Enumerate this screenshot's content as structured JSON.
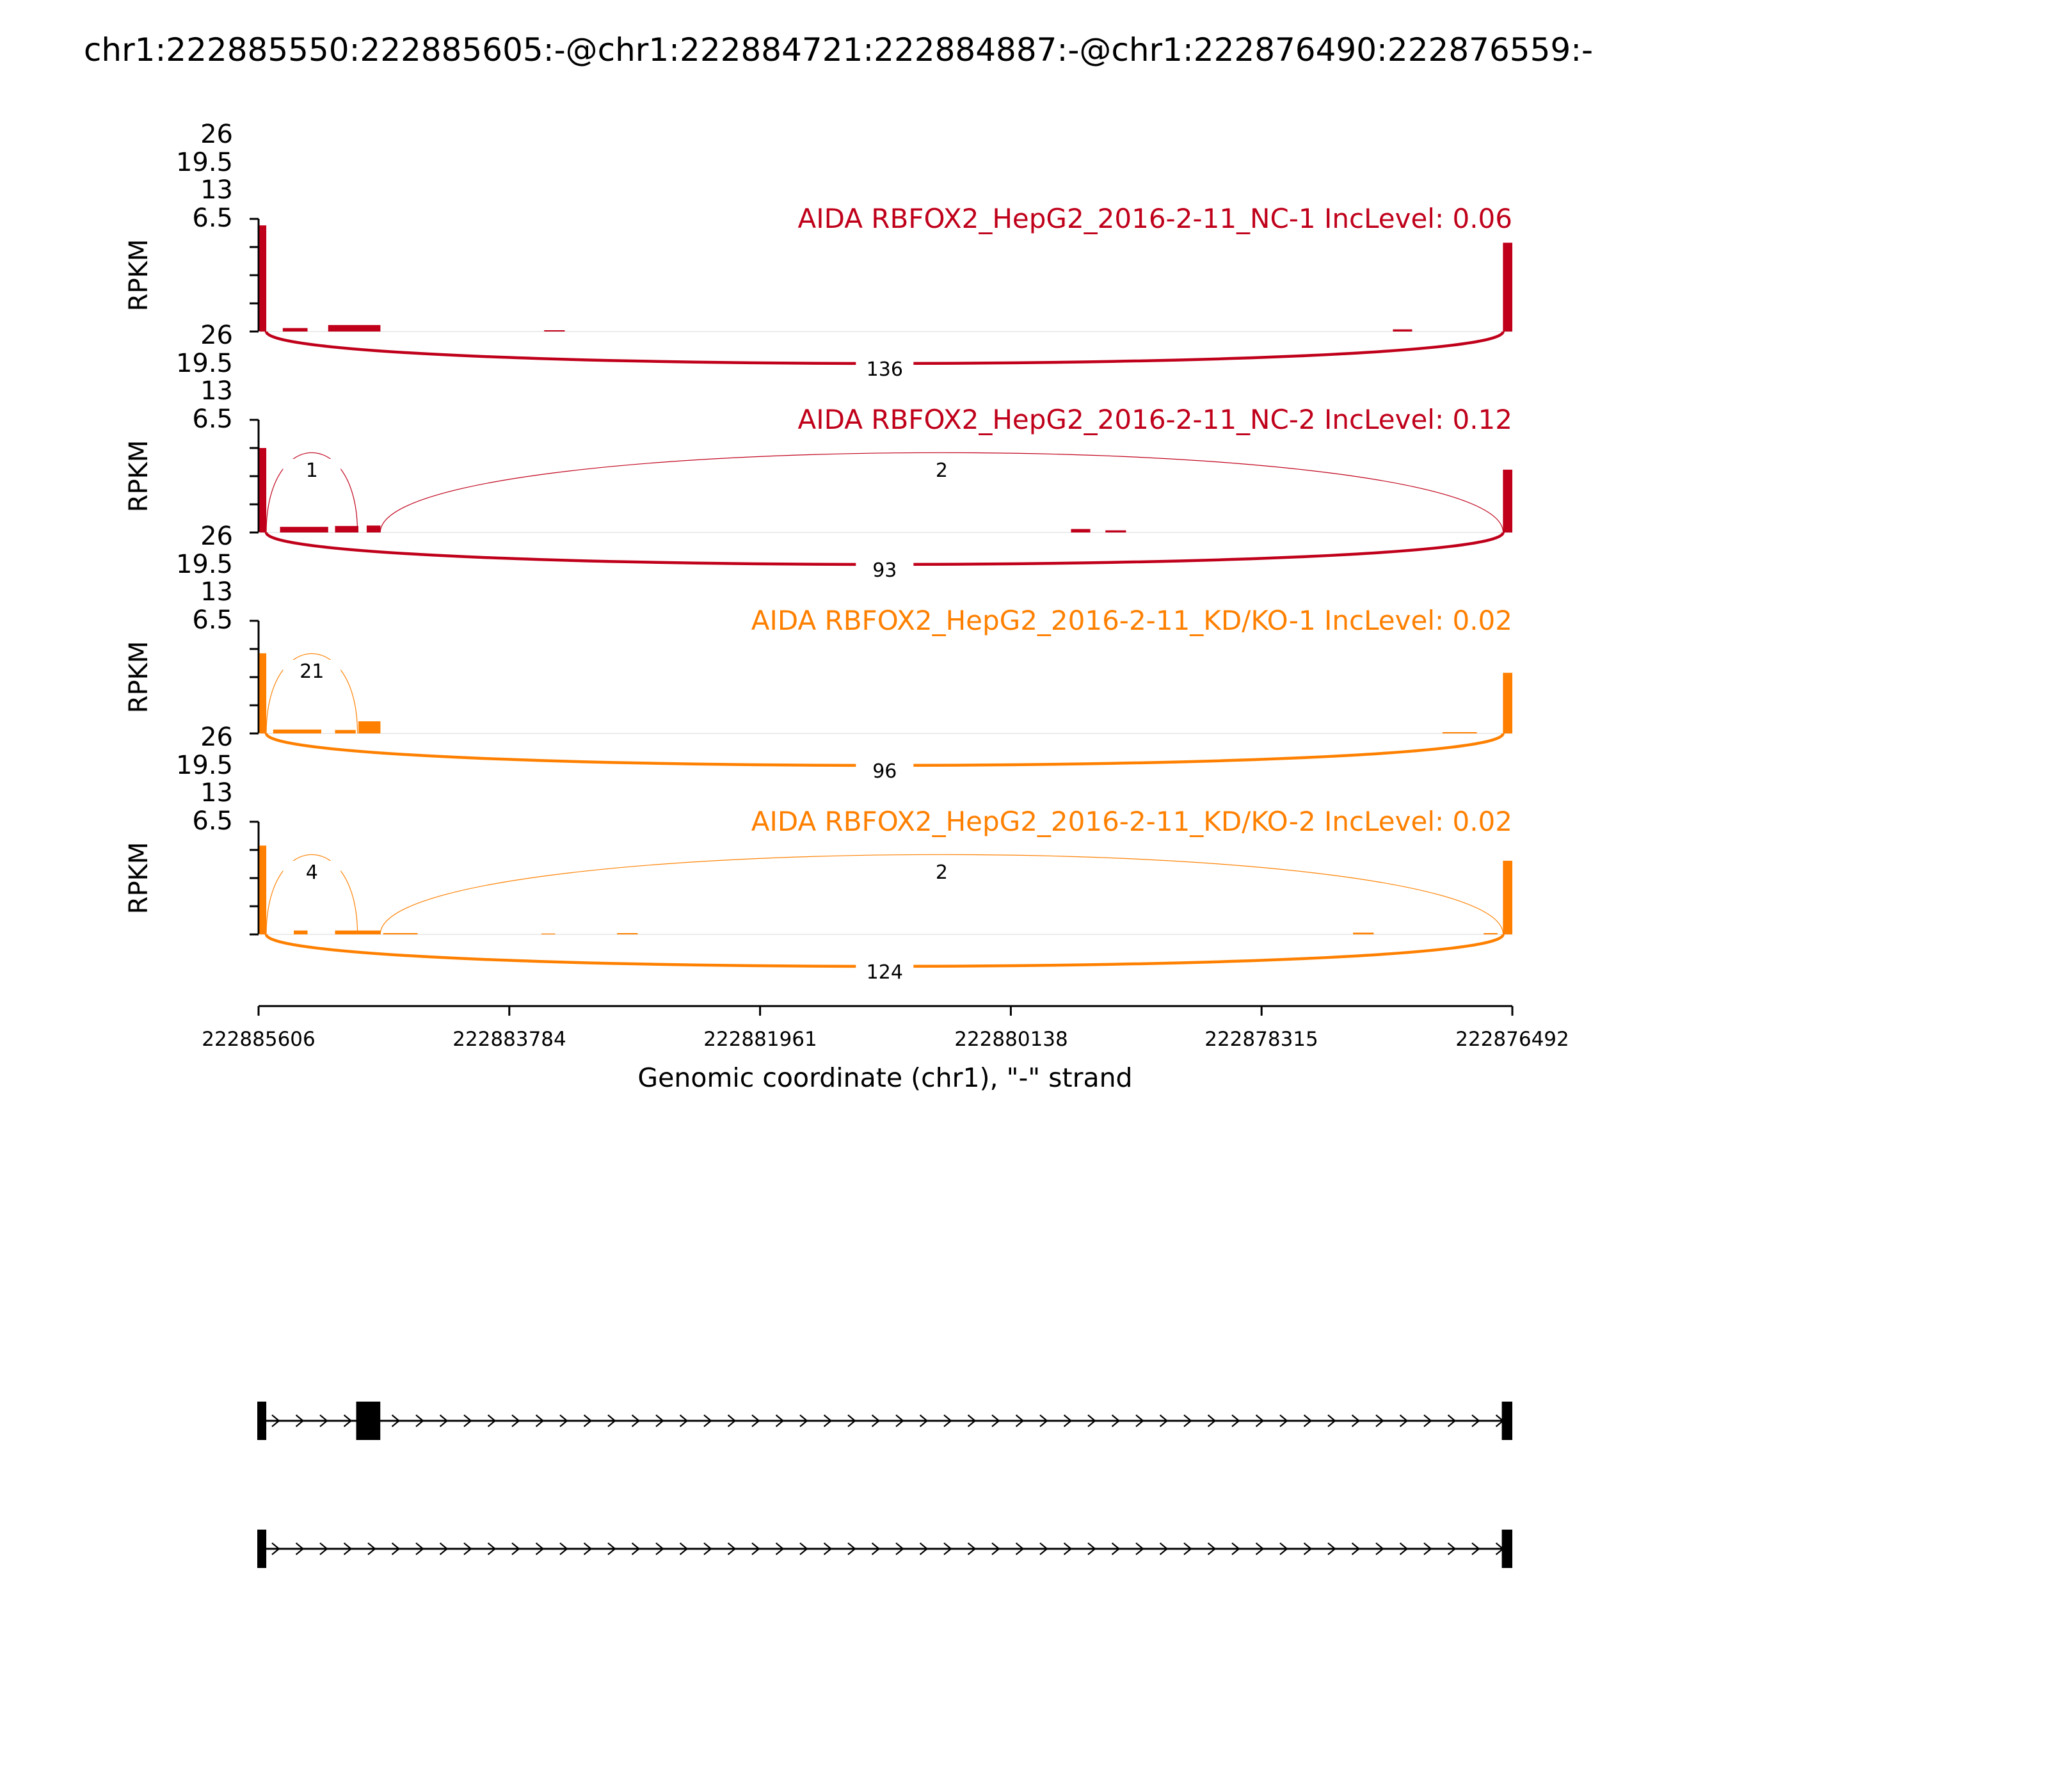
{
  "chart_data": {
    "type": "sashimi",
    "title": "chr1:222885550:222885605:-@chr1:222884721:222884887:-@chr1:222876490:222876559:-",
    "xlabel": "Genomic coordinate (chr1), \"-\" strand",
    "ylabel": "RPKM",
    "ylim": [
      0,
      26
    ],
    "yticks": [
      "6.5",
      "13",
      "19.5",
      "26"
    ],
    "xlim": [
      222885606,
      222876492
    ],
    "xticks": [
      "222885606",
      "222883784",
      "222881961",
      "222880138",
      "222878315",
      "222876492"
    ],
    "panels": [
      {
        "label": "AIDA RBFOX2_HepG2_2016-2-11_NC-1 IncLevel: 0.06",
        "color": "#c0001a",
        "coverage": [
          {
            "x": [
              222885600,
              222885550
            ],
            "y": 24.5
          },
          {
            "x": [
              222885430,
              222885250
            ],
            "y": 0.8
          },
          {
            "x": [
              222885100,
              222884720
            ],
            "y": 1.5
          },
          {
            "x": [
              222883530,
              222883380
            ],
            "y": 0.3
          },
          {
            "x": [
              222877360,
              222877220
            ],
            "y": 0.5
          },
          {
            "x": [
              222876560,
              222876492
            ],
            "y": 20.5
          }
        ],
        "junctions": [
          {
            "donor": 222885550,
            "acceptor": 222876559,
            "count": "136",
            "side": "below"
          }
        ]
      },
      {
        "label": "AIDA RBFOX2_HepG2_2016-2-11_NC-2 IncLevel: 0.12",
        "color": "#c0001a",
        "coverage": [
          {
            "x": [
              222885600,
              222885550
            ],
            "y": 19.5
          },
          {
            "x": [
              222885450,
              222885100
            ],
            "y": 1.3
          },
          {
            "x": [
              222885050,
              222884880
            ],
            "y": 1.5
          },
          {
            "x": [
              222884820,
              222884720
            ],
            "y": 1.6
          },
          {
            "x": [
              222879700,
              222879560
            ],
            "y": 0.8
          },
          {
            "x": [
              222879450,
              222879300
            ],
            "y": 0.5
          },
          {
            "x": [
              222876560,
              222876492
            ],
            "y": 14.5
          }
        ],
        "junctions": [
          {
            "donor": 222885550,
            "acceptor": 222884887,
            "count": "1",
            "side": "above"
          },
          {
            "donor": 222884721,
            "acceptor": 222876559,
            "count": "2",
            "side": "above"
          },
          {
            "donor": 222885550,
            "acceptor": 222876559,
            "count": "93",
            "side": "below"
          }
        ]
      },
      {
        "label": "AIDA RBFOX2_HepG2_2016-2-11_KD/KO-1 IncLevel: 0.02",
        "color": "#ff8000",
        "coverage": [
          {
            "x": [
              222885600,
              222885550
            ],
            "y": 18.5
          },
          {
            "x": [
              222885500,
              222885150
            ],
            "y": 0.9
          },
          {
            "x": [
              222885050,
              222884900
            ],
            "y": 0.8
          },
          {
            "x": [
              222884880,
              222884720
            ],
            "y": 2.8
          },
          {
            "x": [
              222877000,
              222876750
            ],
            "y": 0.3
          },
          {
            "x": [
              222876560,
              222876492
            ],
            "y": 14
          }
        ],
        "junctions": [
          {
            "donor": 222885550,
            "acceptor": 222884887,
            "count": "21",
            "side": "above"
          },
          {
            "donor": 222885550,
            "acceptor": 222876559,
            "count": "96",
            "side": "below"
          }
        ]
      },
      {
        "label": "AIDA RBFOX2_HepG2_2016-2-11_KD/KO-2 IncLevel: 0.02",
        "color": "#ff8000",
        "coverage": [
          {
            "x": [
              222885600,
              222885550
            ],
            "y": 20.5
          },
          {
            "x": [
              222885350,
              222885250
            ],
            "y": 0.9
          },
          {
            "x": [
              222885050,
              222884720
            ],
            "y": 0.9
          },
          {
            "x": [
              222884700,
              222884450
            ],
            "y": 0.3
          },
          {
            "x": [
              222883550,
              222883450
            ],
            "y": 0.2
          },
          {
            "x": [
              222883000,
              222882850
            ],
            "y": 0.3
          },
          {
            "x": [
              222877650,
              222877500
            ],
            "y": 0.4
          },
          {
            "x": [
              222876700,
              222876600
            ],
            "y": 0.3
          },
          {
            "x": [
              222876560,
              222876492
            ],
            "y": 17
          }
        ],
        "junctions": [
          {
            "donor": 222885550,
            "acceptor": 222884887,
            "count": "4",
            "side": "above"
          },
          {
            "donor": 222884721,
            "acceptor": 222876559,
            "count": "2",
            "side": "above"
          },
          {
            "donor": 222885550,
            "acceptor": 222876559,
            "count": "124",
            "side": "below"
          }
        ]
      }
    ],
    "isoforms": [
      {
        "exons": [
          [
            222885606,
            222885550
          ],
          [
            222884887,
            222884721
          ],
          [
            222876559,
            222876492
          ]
        ]
      },
      {
        "exons": [
          [
            222885606,
            222885550
          ],
          [
            222876559,
            222876492
          ]
        ]
      }
    ]
  }
}
